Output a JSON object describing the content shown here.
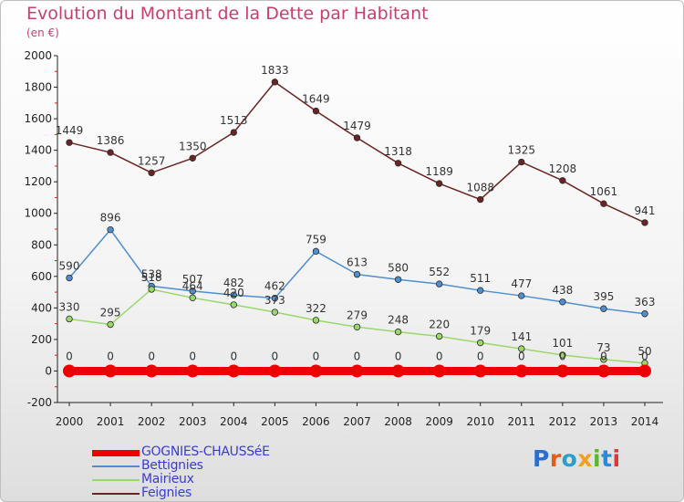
{
  "title": "Evolution du Montant de la Dette par Habitant",
  "subtitle": "(en €)",
  "logo": "Proxiti",
  "chart_data": {
    "type": "line",
    "x": [
      "2000",
      "2001",
      "2002",
      "2003",
      "2004",
      "2005",
      "2006",
      "2007",
      "2008",
      "2009",
      "2010",
      "2011",
      "2012",
      "2013",
      "2014"
    ],
    "ylim": [
      -200,
      2000
    ],
    "yticks": [
      "-200",
      "0",
      "200",
      "400",
      "600",
      "800",
      "1000",
      "1200",
      "1400",
      "1600",
      "1800",
      "2000"
    ],
    "grid": false,
    "legend_placement": "bottom-left",
    "series": [
      {
        "name": "Feignies",
        "color": "#6b2424",
        "values": [
          1449,
          1386,
          1257,
          1350,
          1513,
          1833,
          1649,
          1479,
          1318,
          1189,
          1088,
          1325,
          1208,
          1061,
          941
        ]
      },
      {
        "name": "Bettignies",
        "color": "#4f8fd0",
        "values": [
          590,
          896,
          538,
          507,
          482,
          462,
          759,
          613,
          580,
          552,
          511,
          477,
          438,
          395,
          363
        ]
      },
      {
        "name": "Mairieux",
        "color": "#9ad86a",
        "values": [
          330,
          295,
          518,
          464,
          420,
          373,
          322,
          279,
          248,
          220,
          179,
          141,
          101,
          73,
          50
        ]
      },
      {
        "name": "GOGNIES-CHAUSSéE",
        "color": "#ee0000",
        "values": [
          0,
          0,
          0,
          0,
          0,
          0,
          0,
          0,
          0,
          0,
          0,
          0,
          0,
          0,
          0
        ]
      }
    ],
    "legend": [
      {
        "name": "GOGNIES-CHAUSSéE",
        "color": "#ee0000",
        "label_color": "#3a3ad8"
      },
      {
        "name": "Bettignies",
        "color": "#4f8fd0",
        "label_color": "#3a3ad8"
      },
      {
        "name": "Mairieux",
        "color": "#9ad86a",
        "label_color": "#3a3ad8"
      },
      {
        "name": "Feignies",
        "color": "#6b2424",
        "label_color": "#3a3ad8"
      }
    ]
  }
}
